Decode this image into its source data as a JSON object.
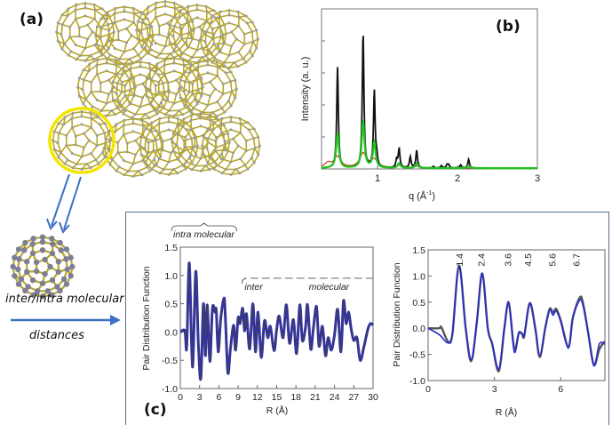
{
  "panels": {
    "a": {
      "label": "(a)"
    },
    "b": {
      "label": "(b)"
    },
    "c": {
      "label": "(c)"
    }
  },
  "side": {
    "caption_line1": "inter/intra molecular",
    "caption_line2": "distances"
  },
  "colors": {
    "yellow_highlight": "#f2e600",
    "bond": "#b8a824",
    "atom": "#9a9aa8",
    "arrow": "#3d6fc2",
    "xrd_black": "#111111",
    "xrd_green": "#22c422",
    "xrd_red": "#c8401a",
    "pdf_blue": "#2a2ad0",
    "pdf_gray": "#555555",
    "box_border": "#5a6f88"
  },
  "chart_data": [
    {
      "id": "b",
      "type": "line",
      "title": "",
      "xlabel": "q (Å",
      "xlabel_sup": "-1",
      "xlabel_close": ")",
      "ylabel": "Intensity (a. u.)",
      "xlim": [
        0.3,
        3
      ],
      "ylim": [
        0,
        1
      ],
      "xticks": [
        1,
        2,
        3
      ],
      "xtick_labels": [
        "1",
        "2",
        "3"
      ],
      "yticks": [
        0.2,
        0.4,
        0.6,
        0.8
      ],
      "series": [
        {
          "name": "black",
          "peaks": [
            [
              0.5,
              0.63
            ],
            [
              0.82,
              0.85
            ],
            [
              0.96,
              0.48
            ],
            [
              0.99,
              0.06
            ],
            [
              1.24,
              0.05
            ],
            [
              1.27,
              0.12
            ],
            [
              1.41,
              0.07
            ],
            [
              1.49,
              0.11
            ],
            [
              1.7,
              0.01
            ],
            [
              1.8,
              0.015
            ],
            [
              1.87,
              0.02
            ],
            [
              1.89,
              0.02
            ],
            [
              2.04,
              0.02
            ],
            [
              2.14,
              0.055
            ]
          ]
        },
        {
          "name": "green",
          "peaks": [
            [
              0.5,
              0.22
            ],
            [
              0.82,
              0.29
            ],
            [
              0.96,
              0.16
            ],
            [
              1.27,
              0.03
            ],
            [
              1.49,
              0.03
            ],
            [
              2.14,
              0.015
            ]
          ]
        },
        {
          "name": "red",
          "peaks": [
            [
              0.38,
              0.03
            ],
            [
              0.5,
              0.07
            ],
            [
              0.82,
              0.09
            ],
            [
              0.96,
              0.05
            ],
            [
              1.27,
              0.015
            ],
            [
              1.49,
              0.01
            ]
          ]
        }
      ]
    },
    {
      "id": "c-left",
      "type": "line",
      "xlabel": "R (Å)",
      "ylabel": "Pair Distribution Function",
      "xlim": [
        0,
        30
      ],
      "ylim": [
        -1.0,
        1.5
      ],
      "xticks": [
        0,
        3,
        6,
        9,
        12,
        15,
        18,
        21,
        24,
        27,
        30
      ],
      "xtick_labels": [
        "0",
        "3",
        "6",
        "9",
        "12",
        "15",
        "18",
        "21",
        "24",
        "27",
        "30"
      ],
      "yticks": [
        -1.0,
        -0.5,
        0.0,
        0.5,
        1.0,
        1.5
      ],
      "ytick_labels": [
        "-1.0",
        "-0.5",
        "0.0",
        "0.5",
        "1.0",
        "1.5"
      ],
      "annotations": [
        {
          "text": "intra  molecular",
          "x_range": [
            0,
            8.5
          ]
        },
        {
          "text": "inter",
          "x": 10
        },
        {
          "text": "molecular",
          "x": 20
        }
      ],
      "series": [
        {
          "name": "data",
          "x": [
            0,
            0.7,
            1.0,
            1.4,
            1.9,
            2.4,
            2.8,
            3.2,
            3.6,
            3.9,
            4.2,
            4.6,
            5.0,
            5.4,
            5.6,
            5.9,
            6.3,
            6.8,
            7.0,
            7.4,
            7.8,
            8.3,
            8.6,
            9.0,
            9.3,
            9.7,
            10.0,
            10.3,
            10.8,
            11.3,
            11.7,
            12.1,
            12.6,
            13.1,
            13.6,
            14.0,
            14.6,
            15.0,
            15.4,
            16.0,
            16.5,
            17.0,
            17.6,
            18.1,
            18.6,
            19.0,
            19.5,
            19.8,
            20.3,
            20.7,
            21.2,
            21.6,
            22.1,
            22.6,
            23.0,
            23.5,
            24.0,
            24.5,
            25.0,
            25.4,
            25.8,
            26.2,
            26.6,
            27.0,
            27.5,
            28.0,
            28.6,
            29.2,
            29.6,
            30
          ],
          "y": [
            0.0,
            0.02,
            -0.27,
            1.22,
            -0.62,
            1.07,
            -0.2,
            -0.82,
            0.5,
            -0.42,
            0.48,
            -0.52,
            0.42,
            0.35,
            0.38,
            -0.35,
            0.25,
            0.6,
            0.3,
            -0.72,
            -0.3,
            0.12,
            -0.32,
            0.25,
            0.15,
            0.42,
            0.02,
            0.32,
            -0.3,
            0.5,
            -0.35,
            0.35,
            -0.45,
            0.2,
            -0.1,
            0.1,
            -0.33,
            0.05,
            0.28,
            -0.1,
            0.48,
            -0.2,
            0.22,
            -0.38,
            0.48,
            -0.15,
            0.1,
            0.48,
            -0.3,
            0.05,
            0.45,
            -0.25,
            0.1,
            -0.42,
            -0.1,
            -0.32,
            -0.05,
            0.4,
            -0.35,
            0.55,
            0.15,
            0.35,
            0.05,
            -0.15,
            -0.1,
            -0.5,
            -0.25,
            0.05,
            0.15,
            0.12
          ]
        }
      ]
    },
    {
      "id": "c-right",
      "type": "line",
      "xlabel": "R (Å)",
      "ylabel": "Pair Distribution Function",
      "xlim": [
        0,
        8
      ],
      "ylim": [
        -1.0,
        1.5
      ],
      "xticks": [
        0,
        3,
        6
      ],
      "xtick_labels": [
        "0",
        "3",
        "6"
      ],
      "yticks": [
        -1.0,
        -0.5,
        0.0,
        0.5,
        1.0,
        1.5
      ],
      "ytick_labels": [
        "-1.0",
        "-0.5",
        "0.0",
        "0.5",
        "1.0",
        "1.5"
      ],
      "peak_labels": [
        {
          "x": 1.4,
          "text": "1.4"
        },
        {
          "x": 2.4,
          "text": "2.4"
        },
        {
          "x": 3.6,
          "text": "3.6"
        },
        {
          "x": 4.5,
          "text": "4.5"
        },
        {
          "x": 5.6,
          "text": "5.6"
        },
        {
          "x": 6.7,
          "text": "6.7"
        }
      ],
      "series": [
        {
          "name": "experiment",
          "color": "gray",
          "x": [
            0,
            0.5,
            0.6,
            0.9,
            1.1,
            1.4,
            1.7,
            1.95,
            2.2,
            2.45,
            2.7,
            2.9,
            3.2,
            3.45,
            3.65,
            3.9,
            4.1,
            4.25,
            4.35,
            4.6,
            4.85,
            5.05,
            5.3,
            5.5,
            5.65,
            5.8,
            6.0,
            6.35,
            6.55,
            6.85,
            7.0,
            7.25,
            7.5,
            7.75,
            8.0
          ],
          "y": [
            0.0,
            0.0,
            0.02,
            -0.25,
            -0.1,
            1.2,
            0.0,
            -0.63,
            0.1,
            1.05,
            0.0,
            -0.3,
            -0.82,
            0.0,
            0.48,
            -0.4,
            -0.1,
            -0.1,
            -0.15,
            0.48,
            0.0,
            -0.55,
            0.0,
            0.37,
            0.3,
            0.37,
            0.15,
            -0.35,
            0.2,
            0.58,
            0.5,
            -0.1,
            -0.7,
            -0.4,
            -0.25
          ]
        },
        {
          "name": "fit",
          "color": "blue",
          "x": [
            0,
            0.5,
            0.9,
            1.1,
            1.4,
            1.7,
            1.95,
            2.2,
            2.45,
            2.7,
            2.9,
            3.2,
            3.45,
            3.65,
            3.9,
            4.1,
            4.25,
            4.35,
            4.6,
            4.85,
            5.05,
            5.3,
            5.5,
            5.65,
            5.8,
            6.0,
            6.35,
            6.55,
            6.85,
            7.0,
            7.25,
            7.5,
            7.75,
            8.0
          ],
          "y": [
            0.0,
            -0.12,
            -0.28,
            -0.1,
            1.18,
            0.0,
            -0.6,
            0.1,
            1.05,
            0.0,
            -0.28,
            -0.78,
            0.0,
            0.5,
            -0.45,
            -0.08,
            -0.12,
            -0.12,
            0.48,
            0.0,
            -0.52,
            0.0,
            0.35,
            0.25,
            0.33,
            0.12,
            -0.38,
            0.2,
            0.53,
            0.45,
            -0.1,
            -0.72,
            -0.3,
            -0.3
          ]
        }
      ]
    }
  ]
}
